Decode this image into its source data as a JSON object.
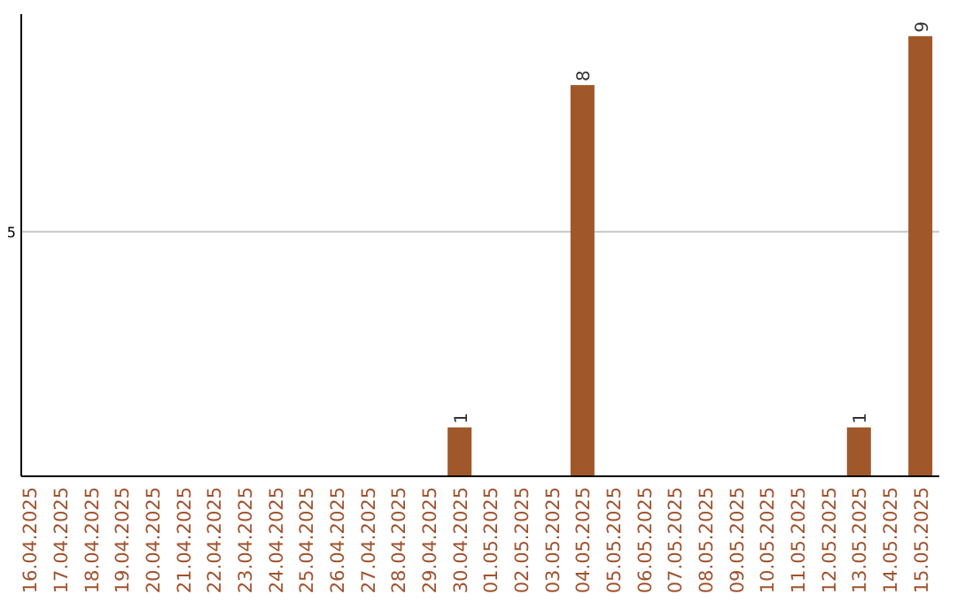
{
  "chart_data": {
    "type": "bar",
    "categories": [
      "16.04.2025",
      "17.04.2025",
      "18.04.2025",
      "19.04.2025",
      "20.04.2025",
      "21.04.2025",
      "22.04.2025",
      "23.04.2025",
      "24.04.2025",
      "25.04.2025",
      "26.04.2025",
      "27.04.2025",
      "28.04.2025",
      "29.04.2025",
      "30.04.2025",
      "01.05.2025",
      "02.05.2025",
      "03.05.2025",
      "04.05.2025",
      "05.05.2025",
      "06.05.2025",
      "07.05.2025",
      "08.05.2025",
      "09.05.2025",
      "10.05.2025",
      "11.05.2025",
      "12.05.2025",
      "13.05.2025",
      "14.05.2025",
      "15.05.2025"
    ],
    "values": [
      null,
      null,
      null,
      null,
      null,
      null,
      null,
      null,
      null,
      null,
      null,
      null,
      null,
      null,
      1,
      null,
      null,
      null,
      8,
      null,
      null,
      null,
      null,
      null,
      null,
      null,
      null,
      1,
      null,
      9
    ],
    "data_labels": true,
    "color": "#a0582a",
    "ylim": [
      0,
      9.45
    ],
    "ref_lines": [
      {
        "axis": "y",
        "value": 5,
        "label": "5",
        "color": "#c8c8c8"
      }
    ]
  }
}
